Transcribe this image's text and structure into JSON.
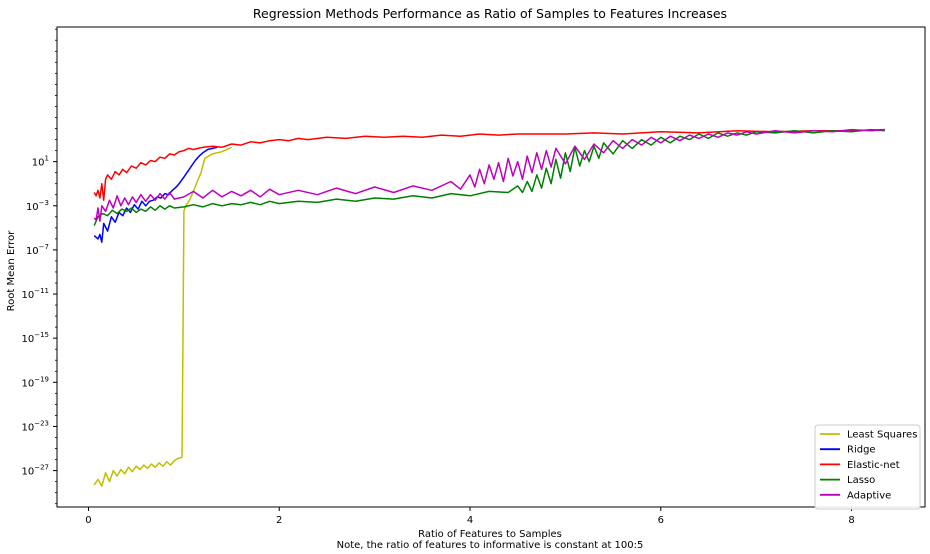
{
  "chart_data": {
    "type": "line",
    "title": "Regression Methods Performance as Ratio of Samples to Features Increases",
    "xlabel": "Ratio of Features to Samples",
    "xlabel_note": "Note, the ratio of features to informative is constant at 100:5",
    "ylabel": "Root Mean Error",
    "y_scale": "log",
    "xlim": [
      -0.33,
      8.77
    ],
    "ylog10_lim": [
      -30.3,
      13.2
    ],
    "x_ticks": [
      {
        "value": 0,
        "label": "0"
      },
      {
        "value": 2,
        "label": "2"
      },
      {
        "value": 4,
        "label": "4"
      },
      {
        "value": 6,
        "label": "6"
      },
      {
        "value": 8,
        "label": "8"
      }
    ],
    "y_ticks": [
      {
        "value": 1,
        "base": "10",
        "exp": "1"
      },
      {
        "value": -3,
        "base": "10",
        "exp": "−3"
      },
      {
        "value": -7,
        "base": "10",
        "exp": "−7"
      },
      {
        "value": -11,
        "base": "10",
        "exp": "−11"
      },
      {
        "value": -15,
        "base": "10",
        "exp": "−15"
      },
      {
        "value": -19,
        "base": "10",
        "exp": "−19"
      },
      {
        "value": -23,
        "base": "10",
        "exp": "−23"
      },
      {
        "value": -27,
        "base": "10",
        "exp": "−27"
      }
    ],
    "legend_position": "lower right",
    "series": [
      {
        "name": "Least Squares",
        "color": "#bfbf00",
        "points": [
          [
            0.06,
            -28.3
          ],
          [
            0.1,
            -27.8
          ],
          [
            0.14,
            -28.4
          ],
          [
            0.18,
            -27.2
          ],
          [
            0.22,
            -28.0
          ],
          [
            0.26,
            -27.0
          ],
          [
            0.3,
            -27.5
          ],
          [
            0.34,
            -26.9
          ],
          [
            0.38,
            -27.3
          ],
          [
            0.42,
            -26.7
          ],
          [
            0.46,
            -27.1
          ],
          [
            0.5,
            -26.6
          ],
          [
            0.54,
            -26.9
          ],
          [
            0.58,
            -26.5
          ],
          [
            0.62,
            -26.8
          ],
          [
            0.66,
            -26.4
          ],
          [
            0.7,
            -26.7
          ],
          [
            0.74,
            -26.3
          ],
          [
            0.78,
            -26.6
          ],
          [
            0.82,
            -26.2
          ],
          [
            0.86,
            -26.5
          ],
          [
            0.9,
            -26.1
          ],
          [
            0.94,
            -25.9
          ],
          [
            0.98,
            -25.8
          ],
          [
            0.99,
            -16.0
          ],
          [
            1.0,
            -3.5
          ],
          [
            1.02,
            -3.0
          ],
          [
            1.06,
            -2.5
          ],
          [
            1.1,
            -1.7
          ],
          [
            1.14,
            -0.8
          ],
          [
            1.18,
            0.0
          ],
          [
            1.22,
            1.3
          ],
          [
            1.3,
            1.7
          ],
          [
            1.4,
            1.9
          ],
          [
            1.5,
            2.3
          ]
        ]
      },
      {
        "name": "Ridge",
        "color": "#0000ff",
        "points": [
          [
            0.06,
            -5.7
          ],
          [
            0.1,
            -6.0
          ],
          [
            0.12,
            -5.6
          ],
          [
            0.14,
            -6.3
          ],
          [
            0.16,
            -4.6
          ],
          [
            0.2,
            -5.3
          ],
          [
            0.24,
            -4.0
          ],
          [
            0.28,
            -4.5
          ],
          [
            0.32,
            -3.6
          ],
          [
            0.36,
            -3.9
          ],
          [
            0.4,
            -3.2
          ],
          [
            0.44,
            -3.6
          ],
          [
            0.48,
            -2.9
          ],
          [
            0.52,
            -3.3
          ],
          [
            0.56,
            -2.6
          ],
          [
            0.6,
            -3.0
          ],
          [
            0.64,
            -2.6
          ],
          [
            0.68,
            -2.5
          ],
          [
            0.72,
            -2.2
          ],
          [
            0.76,
            -2.3
          ],
          [
            0.8,
            -1.9
          ],
          [
            0.84,
            -2.0
          ],
          [
            0.88,
            -1.6
          ],
          [
            0.92,
            -1.3
          ],
          [
            0.96,
            -0.9
          ],
          [
            1.0,
            -0.4
          ],
          [
            1.04,
            0.1
          ],
          [
            1.08,
            0.6
          ],
          [
            1.12,
            1.1
          ],
          [
            1.16,
            1.5
          ],
          [
            1.2,
            1.8
          ],
          [
            1.25,
            2.1
          ],
          [
            1.3,
            2.2
          ],
          [
            1.35,
            2.3
          ]
        ]
      },
      {
        "name": "Elastic-net",
        "color": "#ff0000",
        "points": [
          [
            0.06,
            -1.8
          ],
          [
            0.08,
            -2.1
          ],
          [
            0.1,
            -1.6
          ],
          [
            0.12,
            -2.3
          ],
          [
            0.14,
            -1.0
          ],
          [
            0.16,
            -2.5
          ],
          [
            0.18,
            -0.6
          ],
          [
            0.2,
            -0.2
          ],
          [
            0.24,
            -0.6
          ],
          [
            0.28,
            0.1
          ],
          [
            0.32,
            -0.2
          ],
          [
            0.36,
            0.3
          ],
          [
            0.4,
            0.0
          ],
          [
            0.45,
            0.6
          ],
          [
            0.5,
            0.4
          ],
          [
            0.55,
            0.9
          ],
          [
            0.6,
            0.7
          ],
          [
            0.65,
            1.1
          ],
          [
            0.7,
            1.0
          ],
          [
            0.75,
            1.4
          ],
          [
            0.8,
            1.3
          ],
          [
            0.85,
            1.7
          ],
          [
            0.9,
            1.6
          ],
          [
            0.95,
            1.9
          ],
          [
            1.0,
            2.0
          ],
          [
            1.05,
            2.2
          ],
          [
            1.1,
            2.1
          ],
          [
            1.2,
            2.3
          ],
          [
            1.3,
            2.4
          ],
          [
            1.4,
            2.3
          ],
          [
            1.5,
            2.6
          ],
          [
            1.6,
            2.5
          ],
          [
            1.7,
            2.8
          ],
          [
            1.8,
            2.7
          ],
          [
            1.9,
            2.9
          ],
          [
            2.0,
            3.0
          ],
          [
            2.1,
            2.9
          ],
          [
            2.2,
            3.1
          ],
          [
            2.3,
            3.0
          ],
          [
            2.5,
            3.2
          ],
          [
            2.7,
            3.1
          ],
          [
            2.9,
            3.3
          ],
          [
            3.1,
            3.2
          ],
          [
            3.3,
            3.3
          ],
          [
            3.5,
            3.2
          ],
          [
            3.7,
            3.4
          ],
          [
            3.9,
            3.3
          ],
          [
            4.1,
            3.5
          ],
          [
            4.3,
            3.4
          ],
          [
            4.5,
            3.5
          ],
          [
            4.7,
            3.5
          ],
          [
            5.0,
            3.5
          ],
          [
            5.3,
            3.6
          ],
          [
            5.6,
            3.5
          ],
          [
            6.0,
            3.7
          ],
          [
            6.4,
            3.6
          ],
          [
            6.8,
            3.8
          ],
          [
            7.2,
            3.7
          ],
          [
            7.6,
            3.8
          ],
          [
            8.0,
            3.8
          ],
          [
            8.35,
            3.9
          ]
        ]
      },
      {
        "name": "Lasso",
        "color": "#008000",
        "points": [
          [
            0.06,
            -4.8
          ],
          [
            0.1,
            -4.0
          ],
          [
            0.15,
            -3.7
          ],
          [
            0.2,
            -3.9
          ],
          [
            0.25,
            -3.4
          ],
          [
            0.3,
            -3.7
          ],
          [
            0.35,
            -3.3
          ],
          [
            0.4,
            -3.5
          ],
          [
            0.45,
            -3.2
          ],
          [
            0.5,
            -3.6
          ],
          [
            0.55,
            -3.3
          ],
          [
            0.6,
            -3.5
          ],
          [
            0.65,
            -3.1
          ],
          [
            0.7,
            -3.4
          ],
          [
            0.75,
            -3.0
          ],
          [
            0.8,
            -3.3
          ],
          [
            0.85,
            -3.0
          ],
          [
            0.9,
            -3.2
          ],
          [
            1.0,
            -3.1
          ],
          [
            1.1,
            -2.9
          ],
          [
            1.2,
            -3.1
          ],
          [
            1.3,
            -2.8
          ],
          [
            1.4,
            -3.0
          ],
          [
            1.5,
            -2.8
          ],
          [
            1.6,
            -2.9
          ],
          [
            1.7,
            -2.7
          ],
          [
            1.8,
            -2.9
          ],
          [
            1.9,
            -2.6
          ],
          [
            2.0,
            -2.8
          ],
          [
            2.2,
            -2.6
          ],
          [
            2.4,
            -2.7
          ],
          [
            2.6,
            -2.4
          ],
          [
            2.8,
            -2.6
          ],
          [
            3.0,
            -2.3
          ],
          [
            3.2,
            -2.4
          ],
          [
            3.4,
            -2.1
          ],
          [
            3.6,
            -2.3
          ],
          [
            3.8,
            -1.9
          ],
          [
            4.0,
            -2.1
          ],
          [
            4.2,
            -1.7
          ],
          [
            4.4,
            -1.8
          ],
          [
            4.5,
            -1.2
          ],
          [
            4.55,
            -1.8
          ],
          [
            4.6,
            -0.8
          ],
          [
            4.65,
            -1.7
          ],
          [
            4.7,
            -0.2
          ],
          [
            4.75,
            -1.4
          ],
          [
            4.8,
            0.4
          ],
          [
            4.85,
            -1.0
          ],
          [
            4.9,
            1.2
          ],
          [
            4.95,
            -0.5
          ],
          [
            5.0,
            1.8
          ],
          [
            5.05,
            0.1
          ],
          [
            5.1,
            2.3
          ],
          [
            5.15,
            0.6
          ],
          [
            5.2,
            2.0
          ],
          [
            5.25,
            1.0
          ],
          [
            5.3,
            2.4
          ],
          [
            5.35,
            1.3
          ],
          [
            5.4,
            2.7
          ],
          [
            5.5,
            1.7
          ],
          [
            5.6,
            2.9
          ],
          [
            5.7,
            2.2
          ],
          [
            5.8,
            3.0
          ],
          [
            5.9,
            2.5
          ],
          [
            6.0,
            3.2
          ],
          [
            6.1,
            2.7
          ],
          [
            6.2,
            3.3
          ],
          [
            6.3,
            3.0
          ],
          [
            6.4,
            3.5
          ],
          [
            6.5,
            3.1
          ],
          [
            6.6,
            3.6
          ],
          [
            6.7,
            3.3
          ],
          [
            6.8,
            3.6
          ],
          [
            6.9,
            3.4
          ],
          [
            7.0,
            3.7
          ],
          [
            7.2,
            3.6
          ],
          [
            7.4,
            3.8
          ],
          [
            7.6,
            3.6
          ],
          [
            7.8,
            3.8
          ],
          [
            8.0,
            3.7
          ],
          [
            8.2,
            3.9
          ],
          [
            8.35,
            3.8
          ]
        ]
      },
      {
        "name": "Adaptive",
        "color": "#bf00bf",
        "points": [
          [
            0.06,
            -4.1
          ],
          [
            0.08,
            -4.3
          ],
          [
            0.1,
            -3.2
          ],
          [
            0.12,
            -4.4
          ],
          [
            0.14,
            -3.0
          ],
          [
            0.18,
            -3.5
          ],
          [
            0.22,
            -2.5
          ],
          [
            0.26,
            -3.2
          ],
          [
            0.3,
            -2.1
          ],
          [
            0.34,
            -3.0
          ],
          [
            0.38,
            -2.3
          ],
          [
            0.42,
            -2.9
          ],
          [
            0.46,
            -2.2
          ],
          [
            0.5,
            -2.7
          ],
          [
            0.55,
            -2.0
          ],
          [
            0.6,
            -2.6
          ],
          [
            0.65,
            -2.0
          ],
          [
            0.7,
            -2.5
          ],
          [
            0.75,
            -1.9
          ],
          [
            0.8,
            -2.4
          ],
          [
            0.85,
            -1.8
          ],
          [
            0.9,
            -2.4
          ],
          [
            1.0,
            -2.2
          ],
          [
            1.1,
            -1.7
          ],
          [
            1.2,
            -2.3
          ],
          [
            1.3,
            -1.6
          ],
          [
            1.4,
            -2.2
          ],
          [
            1.5,
            -1.7
          ],
          [
            1.6,
            -2.1
          ],
          [
            1.7,
            -1.6
          ],
          [
            1.8,
            -2.2
          ],
          [
            1.9,
            -1.5
          ],
          [
            2.0,
            -2.0
          ],
          [
            2.2,
            -1.6
          ],
          [
            2.4,
            -2.0
          ],
          [
            2.6,
            -1.4
          ],
          [
            2.8,
            -1.9
          ],
          [
            3.0,
            -1.3
          ],
          [
            3.2,
            -1.8
          ],
          [
            3.4,
            -1.2
          ],
          [
            3.6,
            -1.6
          ],
          [
            3.8,
            -0.8
          ],
          [
            3.9,
            -1.5
          ],
          [
            4.0,
            -0.2
          ],
          [
            4.05,
            -1.3
          ],
          [
            4.1,
            0.3
          ],
          [
            4.15,
            -1.0
          ],
          [
            4.2,
            0.7
          ],
          [
            4.25,
            -0.6
          ],
          [
            4.3,
            0.9
          ],
          [
            4.35,
            -0.8
          ],
          [
            4.4,
            1.3
          ],
          [
            4.45,
            -0.3
          ],
          [
            4.5,
            1.0
          ],
          [
            4.55,
            -0.6
          ],
          [
            4.6,
            1.5
          ],
          [
            4.65,
            0.0
          ],
          [
            4.7,
            1.8
          ],
          [
            4.75,
            0.3
          ],
          [
            4.8,
            2.0
          ],
          [
            4.85,
            0.5
          ],
          [
            4.9,
            2.2
          ],
          [
            5.0,
            0.8
          ],
          [
            5.1,
            2.4
          ],
          [
            5.2,
            1.2
          ],
          [
            5.3,
            2.6
          ],
          [
            5.4,
            1.8
          ],
          [
            5.5,
            2.9
          ],
          [
            5.6,
            2.2
          ],
          [
            5.7,
            3.0
          ],
          [
            5.8,
            2.5
          ],
          [
            5.9,
            3.2
          ],
          [
            6.0,
            2.7
          ],
          [
            6.1,
            3.3
          ],
          [
            6.2,
            2.9
          ],
          [
            6.3,
            3.4
          ],
          [
            6.4,
            3.1
          ],
          [
            6.5,
            3.5
          ],
          [
            6.6,
            3.2
          ],
          [
            6.7,
            3.6
          ],
          [
            6.8,
            3.4
          ],
          [
            6.9,
            3.7
          ],
          [
            7.0,
            3.5
          ],
          [
            7.2,
            3.8
          ],
          [
            7.4,
            3.6
          ],
          [
            7.6,
            3.8
          ],
          [
            7.8,
            3.7
          ],
          [
            8.0,
            3.9
          ],
          [
            8.2,
            3.8
          ],
          [
            8.35,
            3.9
          ]
        ]
      }
    ]
  }
}
